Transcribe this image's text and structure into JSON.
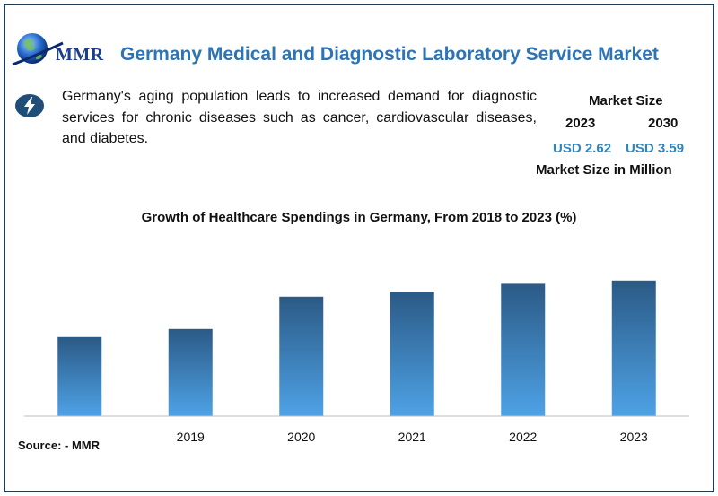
{
  "header": {
    "logo_text": "MMR",
    "title": "Germany Medical and Diagnostic Laboratory Service Market"
  },
  "summary": {
    "icon": "lightning-bolt-icon",
    "text": "Germany's aging population leads to increased demand for diagnostic services for chronic diseases such as cancer, cardiovascular diseases, and diabetes."
  },
  "market_size": {
    "label": "Market Size",
    "year_start": "2023",
    "year_end": "2030",
    "value_start": "USD 2.62",
    "value_end": "USD 3.59",
    "unit": "Market Size in Million"
  },
  "colors": {
    "title": "#2e74b5",
    "value": "#2e86c1",
    "bar_top": "#2b5a86",
    "bar_bottom": "#4ea2e6",
    "frame": "#1f3b5a"
  },
  "chart_data": {
    "type": "bar",
    "title": "Growth of Healthcare Spendings in Germany, From 2018 to 2023 (%)",
    "categories": [
      "",
      "2019",
      "2020",
      "2021",
      "2022",
      "2023"
    ],
    "values": [
      4.9,
      5.4,
      7.4,
      7.7,
      8.2,
      8.4
    ],
    "ylim": [
      0,
      10
    ],
    "xlabel": "",
    "ylabel": "",
    "grid": false
  },
  "source": "Source: - MMR"
}
